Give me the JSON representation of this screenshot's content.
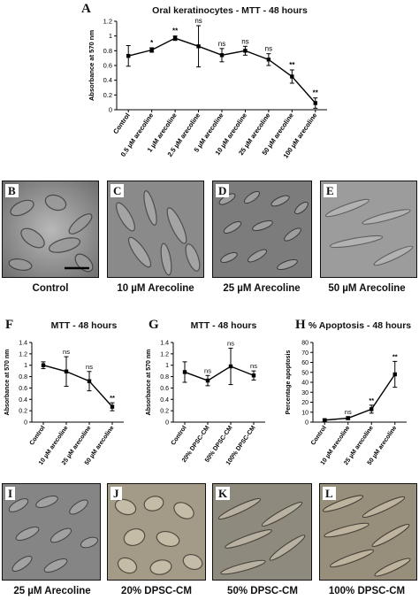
{
  "colors": {
    "line": "#000000",
    "photo_light": "#9a9a9a",
    "photo_dark": "#4a4a4a"
  },
  "panels": {
    "A": "A",
    "B": "B",
    "C": "C",
    "D": "D",
    "E": "E",
    "F": "F",
    "G": "G",
    "H": "H",
    "I": "I",
    "J": "J",
    "K": "K",
    "L": "L"
  },
  "chart_data": [
    {
      "id": "A",
      "type": "line",
      "title": "Oral keratinocytes - MTT - 48 hours",
      "xlabel": "",
      "ylabel": "Absorbance at 570 nm",
      "categories": [
        "Control",
        "0.5 µM arecoline",
        "1 µM arecoline",
        "2.5 µM arecoline",
        "5 µM arecoline",
        "10 µM arecoline",
        "25 µM arecoline",
        "50 µM arecoline",
        "100 µM arecoline"
      ],
      "values": [
        0.73,
        0.81,
        0.97,
        0.86,
        0.74,
        0.8,
        0.68,
        0.45,
        0.09
      ],
      "errors": [
        0.14,
        0.03,
        0.03,
        0.28,
        0.09,
        0.06,
        0.08,
        0.09,
        0.07
      ],
      "significance": [
        "",
        "*",
        "**",
        "ns",
        "ns",
        "ns",
        "ns",
        "**",
        "**"
      ],
      "ylim": [
        0,
        1.2
      ],
      "yticks": [
        "0",
        "0.2",
        "0.4",
        "0.6",
        "0.8",
        "1",
        "1.2"
      ],
      "grid": false
    },
    {
      "id": "F",
      "type": "line",
      "title": "MTT - 48 hours",
      "xlabel": "",
      "ylabel": "Absorbance at 570 nm",
      "categories": [
        "Control",
        "10 µM arecoline",
        "25 µM arecoline",
        "50 µM arecoline"
      ],
      "values": [
        1.0,
        0.89,
        0.72,
        0.27
      ],
      "errors": [
        0.06,
        0.26,
        0.17,
        0.07
      ],
      "significance": [
        "",
        "ns",
        "ns",
        "**"
      ],
      "ylim": [
        0,
        1.4
      ],
      "yticks": [
        "0",
        "0.2",
        "0.4",
        "0.6",
        "0.8",
        "1",
        "1.2",
        "1.4"
      ],
      "grid": false
    },
    {
      "id": "G",
      "type": "line",
      "title": "MTT - 48 hours",
      "xlabel": "",
      "ylabel": "Absorbance at 570 nm",
      "categories": [
        "Control",
        "20% DPSC-CM",
        "50% DPSC-CM",
        "100% DPSC-CM"
      ],
      "values": [
        0.88,
        0.73,
        0.98,
        0.82
      ],
      "errors": [
        0.18,
        0.09,
        0.32,
        0.08
      ],
      "significance": [
        "",
        "ns",
        "ns",
        "ns"
      ],
      "ylim": [
        0,
        1.4
      ],
      "yticks": [
        "0",
        "0.2",
        "0.4",
        "0.6",
        "0.8",
        "1",
        "1.2",
        "1.4"
      ],
      "grid": false
    },
    {
      "id": "H",
      "type": "line",
      "title": "% Apoptosis - 48 hours",
      "xlabel": "",
      "ylabel": "Percentage apoptosis",
      "categories": [
        "Control",
        "10 µM arecoline",
        "25 µM arecoline",
        "50 µM arecoline"
      ],
      "values": [
        2,
        4,
        13,
        48
      ],
      "errors": [
        1,
        1.5,
        4,
        13
      ],
      "significance": [
        "",
        "ns",
        "**",
        "**"
      ],
      "ylim": [
        0,
        80
      ],
      "yticks": [
        "0",
        "10",
        "20",
        "30",
        "40",
        "50",
        "60",
        "70",
        "80"
      ],
      "grid": false
    }
  ],
  "captions": {
    "row1": [
      "Control",
      "10 µM Arecoline",
      "25 µM Arecoline",
      "50 µM Arecoline"
    ],
    "row2": [
      "25 µM Arecoline",
      "20% DPSC-CM",
      "50% DPSC-CM",
      "100% DPSC-CM"
    ]
  }
}
